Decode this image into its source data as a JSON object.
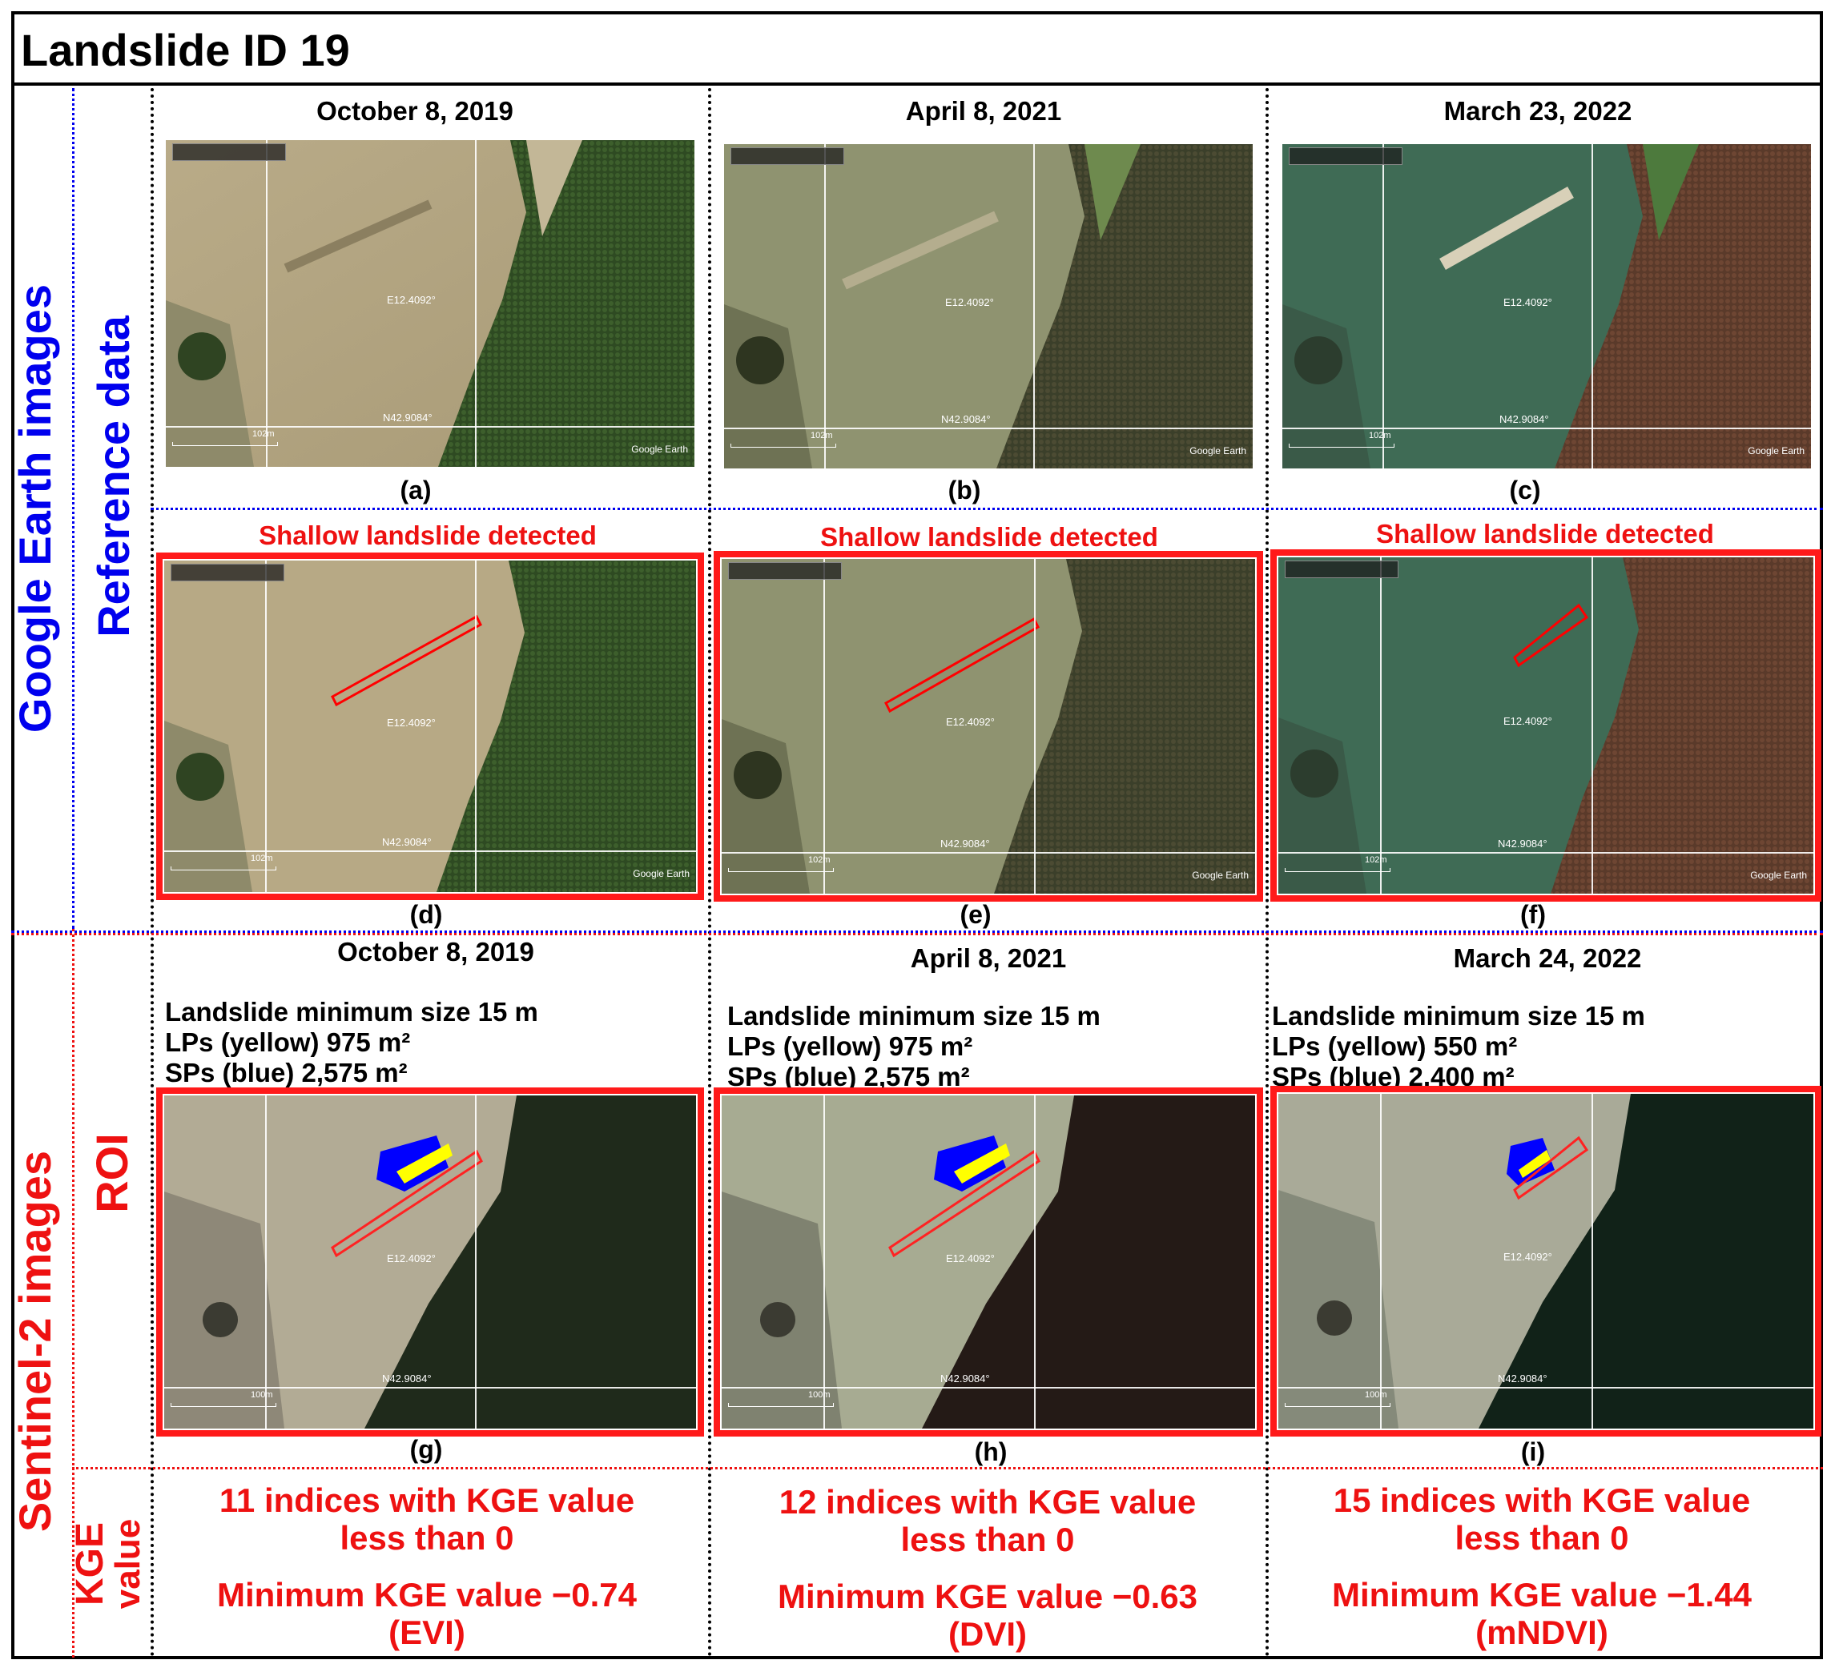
{
  "title": "Landslide ID 19",
  "side_labels": {
    "google_earth": "Google Earth images",
    "reference": "Reference data",
    "sentinel": "Sentinel-2 images",
    "roi": "ROI",
    "kge_line1": "KGE",
    "kge_line2": "value"
  },
  "columns": [
    {
      "ge_date": "October 8, 2019",
      "s2_date": "October 8, 2019",
      "letters": [
        "(a)",
        "(d)",
        "(g)"
      ],
      "detected": "Shallow landslide detected",
      "info": [
        "Landslide minimum size 15 m",
        "LPs (yellow) 975 m²",
        "SPs (blue) 2,575 m²"
      ],
      "kge_count": "11 indices with KGE value",
      "kge_count2": "less than 0",
      "kge_min": "Minimum KGE value −0.74",
      "kge_index": "(EVI)"
    },
    {
      "ge_date": "April 8, 2021",
      "s2_date": "April 8, 2021",
      "letters": [
        "(b)",
        "(e)",
        "(h)"
      ],
      "detected": "Shallow landslide detected",
      "info": [
        "Landslide minimum size 15 m",
        "LPs (yellow) 975 m²",
        "SPs (blue) 2,575 m²"
      ],
      "kge_count": "12 indices with KGE value",
      "kge_count2": "less than 0",
      "kge_min": "Minimum KGE value −0.63",
      "kge_index": "(DVI)"
    },
    {
      "ge_date": "March 23, 2022",
      "s2_date": "March 24, 2022",
      "letters": [
        "(c)",
        "(f)",
        "(i)"
      ],
      "detected": "Shallow landslide detected",
      "info": [
        "Landslide minimum size 15 m",
        "LPs (yellow) 550 m²",
        "SPs (blue) 2,400 m²"
      ],
      "kge_count": "15 indices with KGE value",
      "kge_count2": "less than 0",
      "kge_min": "Minimum KGE value −1.44",
      "kge_index": "(mNDVI)"
    }
  ],
  "map_labels": {
    "lon": "E12.4092°",
    "lat": "N42.9084°",
    "scale_ge": "102m",
    "scale_s2": "100m",
    "logo": "Google Earth"
  },
  "colors": {
    "frame_red": "#ff1a1a",
    "text_red": "#ee1111",
    "text_blue": "#0000ee",
    "lp_yellow": "#ffff00",
    "sp_blue": "#0000ff"
  }
}
